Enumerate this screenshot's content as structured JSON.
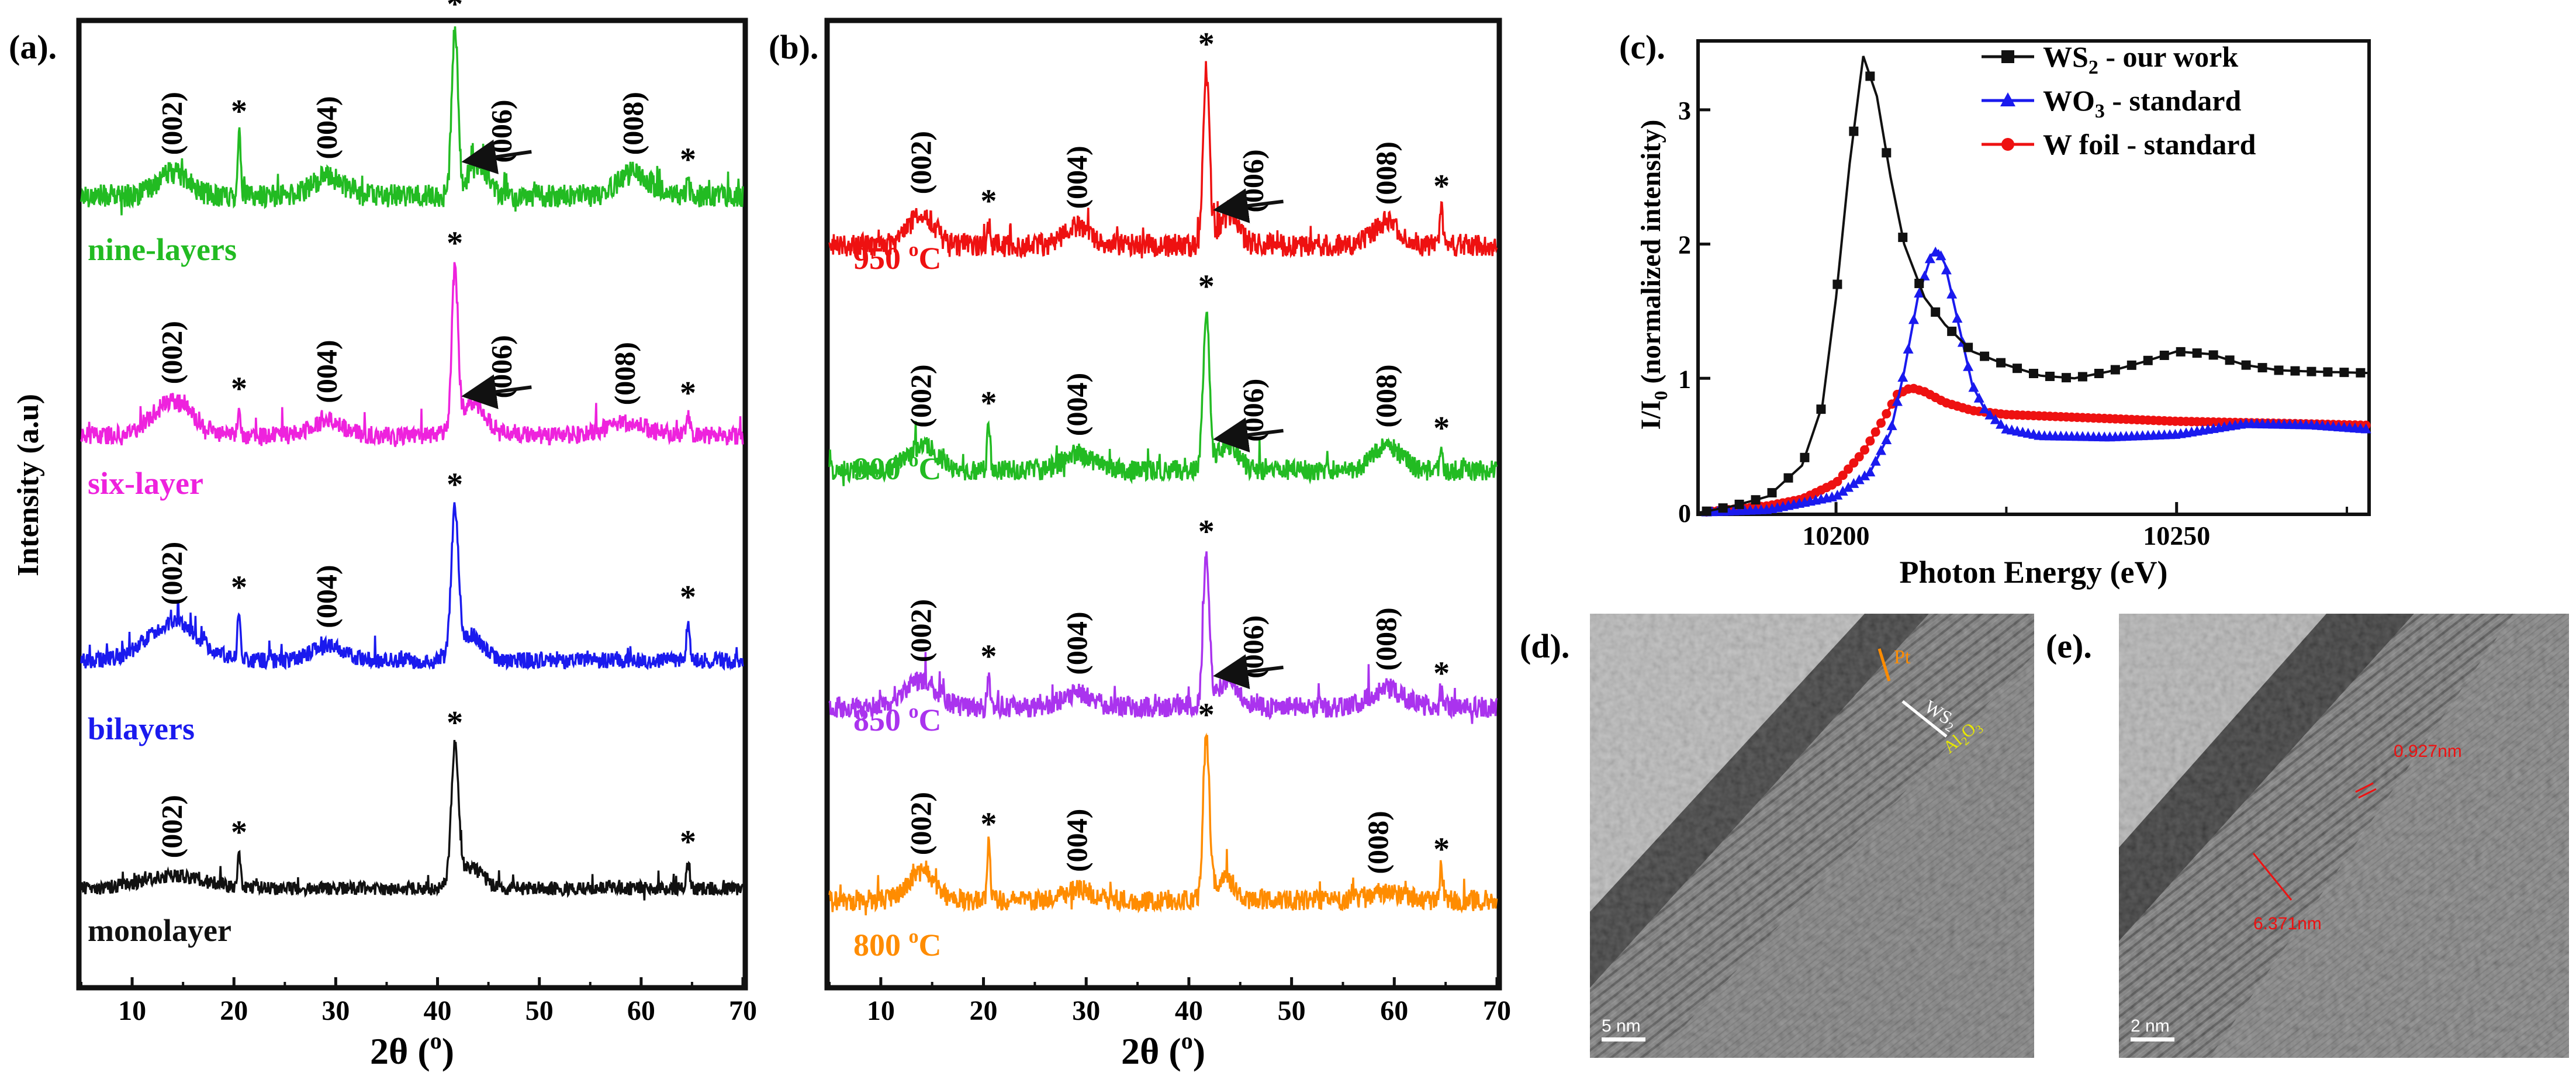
{
  "panel_labels": {
    "a": "(a).",
    "b": "(b).",
    "c": "(c).",
    "d": "(d).",
    "e": "(e)."
  },
  "chart_data": [
    {
      "id": "a",
      "type": "line",
      "xlabel": "2θ (°)",
      "xlabel_main": "2θ (",
      "xlabel_deg": "o",
      "xlabel_close": ")",
      "ylabel": "Intensity (a.u)",
      "xlim": [
        5,
        70
      ],
      "xticks": [
        10,
        20,
        30,
        40,
        50,
        60,
        70
      ],
      "series": [
        {
          "name": "nine-layers",
          "label": "nine-layers",
          "color": "#22bb22",
          "noise": 1.0,
          "peaks": [
            {
              "x": 14,
              "h": 0.55,
              "w": 1.5
            },
            {
              "x": 20.5,
              "h": 1.5,
              "w": 0.15
            },
            {
              "x": 29.2,
              "h": 0.45,
              "w": 1.5
            },
            {
              "x": 41.7,
              "h": 4.0,
              "w": 0.3
            },
            {
              "x": 44.0,
              "h": 0.7,
              "w": 1.0
            },
            {
              "x": 59.3,
              "h": 0.55,
              "w": 1.5
            },
            {
              "x": 64.6,
              "h": 0.35,
              "w": 0.15
            }
          ],
          "annotations": [
            {
              "text": "(002)",
              "x": 14
            },
            {
              "text": "*",
              "x": 20.5
            },
            {
              "text": "(004)",
              "x": 29.2
            },
            {
              "text": "*",
              "x": 41.7
            },
            {
              "text": "(006)",
              "x": 45.5,
              "arrow": true
            },
            {
              "text": "(008)",
              "x": 59.3
            },
            {
              "text": "*",
              "x": 64.6
            }
          ]
        },
        {
          "name": "six-layer",
          "label": "six-layer",
          "color": "#ee22dd",
          "noise": 0.8,
          "peaks": [
            {
              "x": 14,
              "h": 0.8,
              "w": 2.0
            },
            {
              "x": 20.5,
              "h": 0.6,
              "w": 0.15
            },
            {
              "x": 29.2,
              "h": 0.35,
              "w": 1.5
            },
            {
              "x": 41.7,
              "h": 3.8,
              "w": 0.3
            },
            {
              "x": 43.5,
              "h": 0.8,
              "w": 1.2
            },
            {
              "x": 58.5,
              "h": 0.3,
              "w": 2.0
            },
            {
              "x": 64.6,
              "h": 0.5,
              "w": 0.15
            }
          ],
          "annotations": [
            {
              "text": "(002)",
              "x": 14
            },
            {
              "text": "*",
              "x": 20.5
            },
            {
              "text": "(004)",
              "x": 29.2
            },
            {
              "text": "*",
              "x": 41.7
            },
            {
              "text": "(006)",
              "x": 45.5,
              "arrow": true
            },
            {
              "text": "(008)",
              "x": 58.5
            },
            {
              "text": "*",
              "x": 64.6
            }
          ]
        },
        {
          "name": "bilayers",
          "label": "bilayers",
          "color": "#1a1aee",
          "noise": 0.7,
          "peaks": [
            {
              "x": 14,
              "h": 0.9,
              "w": 2.5
            },
            {
              "x": 20.5,
              "h": 1.2,
              "w": 0.15
            },
            {
              "x": 29.2,
              "h": 0.35,
              "w": 1.5
            },
            {
              "x": 41.7,
              "h": 3.4,
              "w": 0.35
            },
            {
              "x": 43.2,
              "h": 0.6,
              "w": 1.2
            },
            {
              "x": 64.6,
              "h": 1.0,
              "w": 0.15
            }
          ],
          "annotations": [
            {
              "text": "(002)",
              "x": 14
            },
            {
              "text": "*",
              "x": 20.5
            },
            {
              "text": "(004)",
              "x": 29.2
            },
            {
              "text": "*",
              "x": 41.7
            },
            {
              "text": "*",
              "x": 64.6
            }
          ]
        },
        {
          "name": "monolayer",
          "label": "monolayer",
          "color": "#111111",
          "noise": 0.6,
          "peaks": [
            {
              "x": 14,
              "h": 0.3,
              "w": 3.0
            },
            {
              "x": 20.5,
              "h": 0.8,
              "w": 0.15
            },
            {
              "x": 41.7,
              "h": 3.2,
              "w": 0.35
            },
            {
              "x": 43.2,
              "h": 0.5,
              "w": 1.2
            },
            {
              "x": 64.6,
              "h": 0.6,
              "w": 0.15
            }
          ],
          "annotations": [
            {
              "text": "(002)",
              "x": 14
            },
            {
              "text": "*",
              "x": 20.5
            },
            {
              "text": "*",
              "x": 41.7
            },
            {
              "text": "*",
              "x": 64.6
            }
          ]
        }
      ]
    },
    {
      "id": "b",
      "type": "line",
      "xlabel": "2θ (°)",
      "xlabel_main": "2θ (",
      "xlabel_deg": "o",
      "xlabel_close": ")",
      "xlim": [
        5,
        70
      ],
      "xticks": [
        10,
        20,
        30,
        40,
        50,
        60,
        70
      ],
      "series": [
        {
          "name": "950 °C",
          "label_num": "950",
          "label_deg": "o",
          "label_unit": "C",
          "color": "#ee1111",
          "noise": 1.0,
          "peaks": [
            {
              "x": 14,
              "h": 0.8,
              "w": 1.2
            },
            {
              "x": 20.5,
              "h": 0.55,
              "w": 0.15
            },
            {
              "x": 29.2,
              "h": 0.45,
              "w": 1.3
            },
            {
              "x": 41.7,
              "h": 4.2,
              "w": 0.3
            },
            {
              "x": 43.8,
              "h": 0.7,
              "w": 1.0
            },
            {
              "x": 59.3,
              "h": 0.55,
              "w": 1.3
            },
            {
              "x": 64.6,
              "h": 0.9,
              "w": 0.15
            }
          ],
          "annotations": [
            {
              "text": "(002)",
              "x": 14
            },
            {
              "text": "*",
              "x": 20.5
            },
            {
              "text": "(004)",
              "x": 29.2
            },
            {
              "text": "*",
              "x": 41.7
            },
            {
              "text": "(006)",
              "x": 45.5,
              "arrow": true
            },
            {
              "text": "(008)",
              "x": 59.3
            },
            {
              "text": "*",
              "x": 64.6
            }
          ]
        },
        {
          "name": "900 °C",
          "label_num": "900",
          "label_deg": "o",
          "label_unit": "C",
          "color": "#22bb22",
          "noise": 0.9,
          "peaks": [
            {
              "x": 14,
              "h": 0.6,
              "w": 1.5
            },
            {
              "x": 20.5,
              "h": 1.1,
              "w": 0.15
            },
            {
              "x": 29.2,
              "h": 0.4,
              "w": 1.4
            },
            {
              "x": 41.7,
              "h": 3.8,
              "w": 0.3
            },
            {
              "x": 43.8,
              "h": 0.6,
              "w": 1.0
            },
            {
              "x": 59.3,
              "h": 0.6,
              "w": 1.4
            },
            {
              "x": 64.6,
              "h": 0.5,
              "w": 0.15
            }
          ],
          "annotations": [
            {
              "text": "(002)",
              "x": 14
            },
            {
              "text": "*",
              "x": 20.5
            },
            {
              "text": "(004)",
              "x": 29.2
            },
            {
              "text": "*",
              "x": 41.7
            },
            {
              "text": "(006)",
              "x": 45.5,
              "arrow": true
            },
            {
              "text": "(008)",
              "x": 59.3
            },
            {
              "text": "*",
              "x": 64.6
            }
          ]
        },
        {
          "name": "850 °C",
          "label_num": "850",
          "label_deg": "o",
          "label_unit": "C",
          "color": "#aa33ee",
          "noise": 0.9,
          "peaks": [
            {
              "x": 14,
              "h": 0.65,
              "w": 1.5
            },
            {
              "x": 20.5,
              "h": 0.7,
              "w": 0.15
            },
            {
              "x": 29.2,
              "h": 0.35,
              "w": 1.4
            },
            {
              "x": 41.7,
              "h": 3.6,
              "w": 0.3
            },
            {
              "x": 43.8,
              "h": 0.6,
              "w": 1.0
            },
            {
              "x": 59.3,
              "h": 0.45,
              "w": 1.6
            },
            {
              "x": 64.6,
              "h": 0.3,
              "w": 0.15
            }
          ],
          "annotations": [
            {
              "text": "(002)",
              "x": 14
            },
            {
              "text": "*",
              "x": 20.5
            },
            {
              "text": "(004)",
              "x": 29.2
            },
            {
              "text": "*",
              "x": 41.7
            },
            {
              "text": "(006)",
              "x": 45.5,
              "arrow": true
            },
            {
              "text": "(008)",
              "x": 59.3
            },
            {
              "text": "*",
              "x": 64.6
            }
          ]
        },
        {
          "name": "800 °C",
          "label_num": "800",
          "label_deg": "o",
          "label_unit": "C",
          "color": "#ff8c00",
          "noise": 0.9,
          "peaks": [
            {
              "x": 14,
              "h": 0.65,
              "w": 1.3
            },
            {
              "x": 20.5,
              "h": 1.3,
              "w": 0.15
            },
            {
              "x": 29.2,
              "h": 0.25,
              "w": 1.4
            },
            {
              "x": 41.7,
              "h": 3.8,
              "w": 0.3
            },
            {
              "x": 43.5,
              "h": 0.5,
              "w": 1.0
            },
            {
              "x": 59.3,
              "h": 0.2,
              "w": 1.6
            },
            {
              "x": 64.6,
              "h": 0.7,
              "w": 0.15
            }
          ],
          "annotations": [
            {
              "text": "(002)",
              "x": 14
            },
            {
              "text": "*",
              "x": 20.5
            },
            {
              "text": "(004)",
              "x": 29.2
            },
            {
              "text": "*",
              "x": 41.7
            },
            {
              "text": "(008)",
              "x": 58.5
            },
            {
              "text": "*",
              "x": 64.6
            }
          ]
        }
      ]
    },
    {
      "id": "c",
      "type": "line",
      "xlabel": "Photon Energy (eV)",
      "ylabel": "I/I0 (normalized intensity)",
      "ylabel_a": "I/I",
      "ylabel_sub": "0",
      "ylabel_b": " (normalized intensity)",
      "xlim": [
        10180,
        10278
      ],
      "ylim": [
        0,
        3.5
      ],
      "xticks": [
        10200,
        10250
      ],
      "yticks": [
        0,
        1,
        2,
        3
      ],
      "legend_position": "top-right",
      "series": [
        {
          "name": "WS2 - our work",
          "label_a": "WS",
          "label_sub": "2",
          "label_b": " - our work",
          "marker": "square",
          "color": "#111111",
          "x": [
            10180,
            10185,
            10190,
            10195,
            10198,
            10200,
            10202,
            10204,
            10206,
            10208,
            10210,
            10213,
            10216,
            10220,
            10225,
            10230,
            10235,
            10240,
            10245,
            10250,
            10255,
            10260,
            10265,
            10270,
            10278
          ],
          "y": [
            0.0,
            0.05,
            0.12,
            0.35,
            0.8,
            1.6,
            2.6,
            3.4,
            3.1,
            2.5,
            2.0,
            1.6,
            1.4,
            1.2,
            1.1,
            1.02,
            1.0,
            1.05,
            1.12,
            1.2,
            1.18,
            1.1,
            1.06,
            1.05,
            1.04
          ]
        },
        {
          "name": "WO3 - standard",
          "label_a": "WO",
          "label_sub": "3",
          "label_b": " - standard",
          "marker": "triangle",
          "color": "#1a1aee",
          "x": [
            10180,
            10190,
            10200,
            10205,
            10208,
            10210,
            10212,
            10214,
            10215,
            10216,
            10218,
            10220,
            10222,
            10225,
            10230,
            10240,
            10250,
            10260,
            10270,
            10278
          ],
          "y": [
            0.0,
            0.02,
            0.12,
            0.3,
            0.6,
            1.05,
            1.6,
            1.92,
            1.95,
            1.85,
            1.4,
            0.95,
            0.75,
            0.62,
            0.57,
            0.56,
            0.58,
            0.66,
            0.65,
            0.62
          ]
        },
        {
          "name": "W foil - standard",
          "label_a": "W foil - standard",
          "label_sub": "",
          "label_b": "",
          "marker": "circle",
          "color": "#ee1111",
          "x": [
            10180,
            10190,
            10195,
            10200,
            10204,
            10207,
            10209,
            10211,
            10213,
            10216,
            10220,
            10225,
            10230,
            10240,
            10250,
            10260,
            10270,
            10278
          ],
          "y": [
            0.0,
            0.05,
            0.1,
            0.22,
            0.45,
            0.7,
            0.88,
            0.93,
            0.9,
            0.82,
            0.76,
            0.73,
            0.72,
            0.7,
            0.68,
            0.67,
            0.66,
            0.65
          ]
        }
      ]
    }
  ],
  "images": {
    "d": {
      "scale_bar": "5 nm",
      "labels": {
        "pt": "Pt",
        "ws2_a": "WS",
        "ws2_sub": "2",
        "al2o3_a": "Al",
        "al2o3_sub1": "2",
        "al2o3_b": "O",
        "al2o3_sub2": "3"
      }
    },
    "e": {
      "scale_bar": "2 nm",
      "labels": {
        "d1": "0.927nm",
        "d2": "6.371nm"
      }
    }
  }
}
